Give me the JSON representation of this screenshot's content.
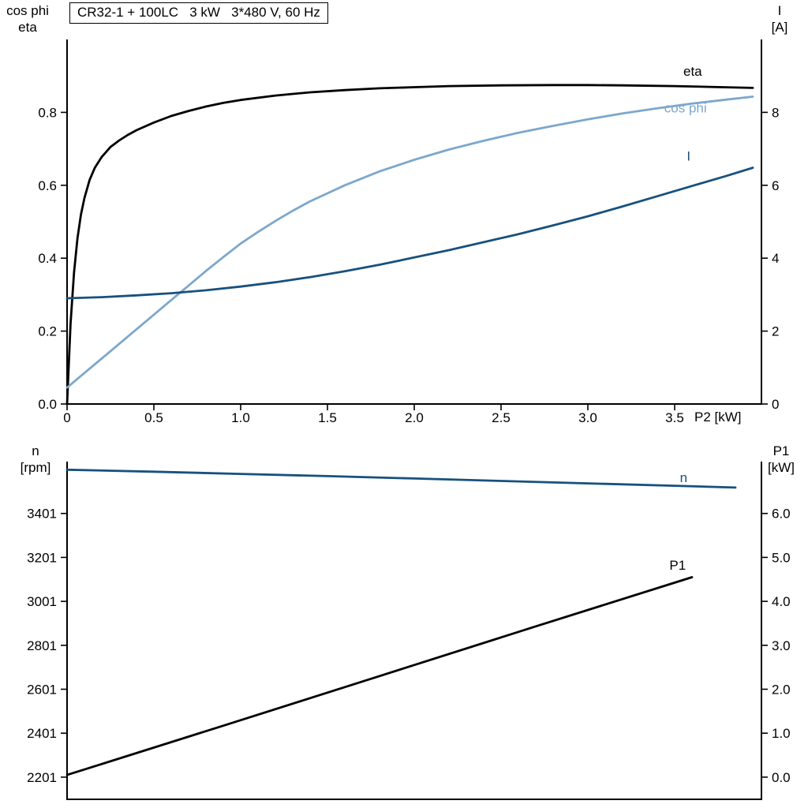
{
  "title_box": "CR32-1 + 100LC   3 kW   3*480 V, 60 Hz",
  "axis_headers": {
    "top_left": [
      "cos phi",
      "eta"
    ],
    "top_right": [
      "I",
      "[A]"
    ],
    "x_label": "P2 [kW]",
    "bottom_left": [
      "n",
      "[rpm]"
    ],
    "bottom_right": [
      "P1",
      "[kW]"
    ]
  },
  "colors": {
    "black": "#000000",
    "light_blue": "#7da7cb",
    "dark_blue": "#17517e",
    "background": "#ffffff"
  },
  "chart_data": [
    {
      "type": "line",
      "title": "CR32-1 + 100LC   3 kW   3*480 V, 60 Hz",
      "grid": false,
      "legend_position": "inline-curve-labels",
      "x": {
        "label": "P2 [kW]",
        "range": [
          0,
          4.0
        ],
        "tick_values": [
          0,
          0.5,
          1,
          1.5,
          2,
          2.5,
          3,
          3.5
        ],
        "ticks": [
          "0",
          "0.5",
          "1.0",
          "1.5",
          "2.0",
          "2.5",
          "3.0",
          "3.5"
        ]
      },
      "y_left": {
        "label": "cos phi / eta",
        "range": [
          0,
          1.0
        ],
        "tick_values": [
          0,
          0.2,
          0.4,
          0.6,
          0.8
        ],
        "ticks": [
          "0.0",
          "0.2",
          "0.4",
          "0.6",
          "0.8"
        ]
      },
      "y_right": {
        "label": "I [A]",
        "range": [
          0,
          10
        ],
        "tick_values": [
          0,
          2,
          4,
          6,
          8
        ],
        "ticks": [
          "0",
          "2",
          "4",
          "6",
          "8"
        ]
      },
      "series": [
        {
          "name": "eta",
          "axis": "left",
          "color": "#000000",
          "label_at": [
            3.55,
            0.9
          ],
          "points": [
            [
              0,
              0
            ],
            [
              0.02,
              0.22
            ],
            [
              0.04,
              0.36
            ],
            [
              0.06,
              0.455
            ],
            [
              0.08,
              0.52
            ],
            [
              0.1,
              0.565
            ],
            [
              0.13,
              0.615
            ],
            [
              0.16,
              0.648
            ],
            [
              0.2,
              0.678
            ],
            [
              0.25,
              0.705
            ],
            [
              0.3,
              0.723
            ],
            [
              0.35,
              0.738
            ],
            [
              0.4,
              0.751
            ],
            [
              0.5,
              0.772
            ],
            [
              0.6,
              0.79
            ],
            [
              0.7,
              0.804
            ],
            [
              0.8,
              0.816
            ],
            [
              0.9,
              0.826
            ],
            [
              1.0,
              0.834
            ],
            [
              1.2,
              0.846
            ],
            [
              1.4,
              0.855
            ],
            [
              1.6,
              0.861
            ],
            [
              1.8,
              0.866
            ],
            [
              2.0,
              0.869
            ],
            [
              2.2,
              0.872
            ],
            [
              2.5,
              0.874
            ],
            [
              2.8,
              0.875
            ],
            [
              3.0,
              0.875
            ],
            [
              3.2,
              0.874
            ],
            [
              3.5,
              0.872
            ],
            [
              3.7,
              0.87
            ],
            [
              3.95,
              0.867
            ]
          ]
        },
        {
          "name": "cos phi",
          "axis": "left",
          "color": "#7da7cb",
          "label_at": [
            3.44,
            0.8
          ],
          "points": [
            [
              0,
              0.045
            ],
            [
              0.1,
              0.085
            ],
            [
              0.2,
              0.125
            ],
            [
              0.3,
              0.165
            ],
            [
              0.4,
              0.205
            ],
            [
              0.5,
              0.245
            ],
            [
              0.6,
              0.285
            ],
            [
              0.7,
              0.325
            ],
            [
              0.8,
              0.365
            ],
            [
              0.9,
              0.403
            ],
            [
              1.0,
              0.44
            ],
            [
              1.1,
              0.472
            ],
            [
              1.2,
              0.502
            ],
            [
              1.3,
              0.53
            ],
            [
              1.4,
              0.556
            ],
            [
              1.5,
              0.578
            ],
            [
              1.6,
              0.6
            ],
            [
              1.8,
              0.638
            ],
            [
              2.0,
              0.67
            ],
            [
              2.2,
              0.698
            ],
            [
              2.4,
              0.722
            ],
            [
              2.6,
              0.744
            ],
            [
              2.8,
              0.763
            ],
            [
              3.0,
              0.781
            ],
            [
              3.2,
              0.797
            ],
            [
              3.4,
              0.811
            ],
            [
              3.6,
              0.824
            ],
            [
              3.8,
              0.835
            ],
            [
              3.95,
              0.843
            ]
          ]
        },
        {
          "name": "I",
          "axis": "right",
          "color": "#17517e",
          "label_at": [
            3.57,
            6.68
          ],
          "points": [
            [
              0,
              2.9
            ],
            [
              0.2,
              2.93
            ],
            [
              0.4,
              2.98
            ],
            [
              0.6,
              3.04
            ],
            [
              0.8,
              3.12
            ],
            [
              1.0,
              3.22
            ],
            [
              1.2,
              3.34
            ],
            [
              1.4,
              3.48
            ],
            [
              1.6,
              3.64
            ],
            [
              1.8,
              3.82
            ],
            [
              2.0,
              4.02
            ],
            [
              2.2,
              4.22
            ],
            [
              2.4,
              4.44
            ],
            [
              2.6,
              4.66
            ],
            [
              2.8,
              4.9
            ],
            [
              3.0,
              5.15
            ],
            [
              3.2,
              5.42
            ],
            [
              3.4,
              5.7
            ],
            [
              3.6,
              5.98
            ],
            [
              3.8,
              6.26
            ],
            [
              3.95,
              6.48
            ]
          ]
        }
      ]
    },
    {
      "type": "line",
      "title": "",
      "grid": false,
      "legend_position": "inline-curve-labels",
      "x": {
        "label": "P2 [kW]",
        "range": [
          0,
          4.0
        ],
        "tick_values": [],
        "ticks": []
      },
      "y_left": {
        "label": "n [rpm]",
        "range": [
          2100,
          3637
        ],
        "tick_values": [
          2201,
          2401,
          2601,
          2801,
          3001,
          3201,
          3401
        ],
        "ticks": [
          "2201",
          "2401",
          "2601",
          "2801",
          "3001",
          "3201",
          "3401"
        ]
      },
      "y_right": {
        "label": "P1 [kW]",
        "range": [
          -0.505,
          7.18
        ],
        "tick_values": [
          0,
          1,
          2,
          3,
          4,
          5,
          6
        ],
        "ticks": [
          "0.0",
          "1.0",
          "2.0",
          "3.0",
          "4.0",
          "5.0",
          "6.0"
        ]
      },
      "series": [
        {
          "name": "n",
          "axis": "left",
          "color": "#17517e",
          "label_at": [
            3.53,
            3543
          ],
          "points": [
            [
              0,
              3600
            ],
            [
              0.5,
              3591
            ],
            [
              1.0,
              3581
            ],
            [
              1.5,
              3571
            ],
            [
              2.0,
              3560
            ],
            [
              2.5,
              3549
            ],
            [
              3.0,
              3538
            ],
            [
              3.5,
              3527
            ],
            [
              3.85,
              3519
            ]
          ]
        },
        {
          "name": "P1",
          "axis": "right",
          "color": "#000000",
          "label_at": [
            3.47,
            4.72
          ],
          "points": [
            [
              0,
              0.05
            ],
            [
              0.9,
              1.17
            ],
            [
              1.8,
              2.3
            ],
            [
              2.7,
              3.43
            ],
            [
              3.6,
              4.55
            ]
          ]
        }
      ]
    }
  ]
}
